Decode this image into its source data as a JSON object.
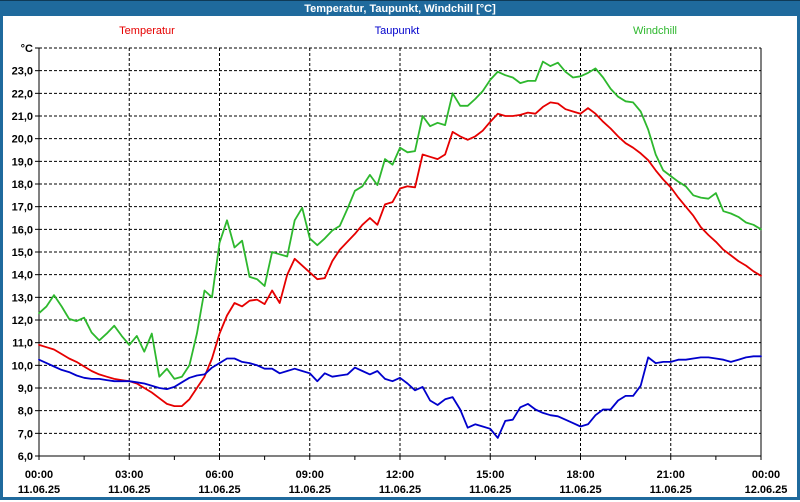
{
  "window": {
    "title": "Temperatur, Taupunkt, Windchill [°C]"
  },
  "colors": {
    "titlebar_bg": "#1f6a9d",
    "frame": "#1f6a9d",
    "plot_background": "#ffffff",
    "grid": "#000000",
    "axis_text": "#000000",
    "title_text": "#ffffff",
    "temperatur": "#e60000",
    "taupunkt": "#0000cc",
    "windchill": "#2eb82e"
  },
  "legend": [
    {
      "label": "Temperatur",
      "color": "#e60000"
    },
    {
      "label": "Taupunkt",
      "color": "#0000cc"
    },
    {
      "label": "Windchill",
      "color": "#2eb82e"
    }
  ],
  "chart_data": {
    "type": "line",
    "title": "Temperatur, Taupunkt, Windchill [°C]",
    "grid": "dashed",
    "legend_position": "top",
    "y_axis": {
      "unit_label": "°C",
      "min": 6,
      "max": 24,
      "tick_step": 1,
      "tick_labels": [
        "23,0",
        "22,0",
        "21,0",
        "20,0",
        "19,0",
        "18,0",
        "17,0",
        "16,0",
        "15,0",
        "14,0",
        "13,0",
        "12,0",
        "11,0",
        "10,0",
        "9,0",
        "8,0",
        "7,0",
        "6,0"
      ]
    },
    "x_axis": {
      "start_hour": 0,
      "end_hour": 24,
      "major_tick_hours": 3,
      "minor_tick_hours": 1.5,
      "labels": [
        {
          "time": "00:00",
          "date": "11.06.25"
        },
        {
          "time": "03:00",
          "date": "11.06.25"
        },
        {
          "time": "06:00",
          "date": "11.06.25"
        },
        {
          "time": "09:00",
          "date": "11.06.25"
        },
        {
          "time": "12:00",
          "date": "11.06.25"
        },
        {
          "time": "15:00",
          "date": "11.06.25"
        },
        {
          "time": "18:00",
          "date": "11.06.25"
        },
        {
          "time": "21:00",
          "date": "11.06.25"
        },
        {
          "time": "00:00",
          "date": "12.06.25"
        }
      ]
    },
    "sample_step_hours": 0.25,
    "series": [
      {
        "name": "Temperatur",
        "color": "#e60000",
        "values": [
          10.9,
          10.8,
          10.7,
          10.5,
          10.3,
          10.15,
          9.95,
          9.75,
          9.6,
          9.5,
          9.4,
          9.35,
          9.3,
          9.2,
          9.0,
          8.8,
          8.55,
          8.3,
          8.2,
          8.2,
          8.5,
          9.0,
          9.5,
          10.3,
          11.4,
          12.2,
          12.75,
          12.6,
          12.85,
          12.9,
          12.7,
          13.3,
          12.75,
          14.0,
          14.7,
          14.4,
          14.1,
          13.8,
          13.85,
          14.6,
          15.1,
          15.45,
          15.8,
          16.2,
          16.5,
          16.2,
          17.1,
          17.2,
          17.8,
          17.9,
          17.85,
          19.3,
          19.2,
          19.1,
          19.3,
          20.3,
          20.1,
          19.95,
          20.1,
          20.35,
          20.75,
          21.1,
          21.0,
          21.0,
          21.05,
          21.15,
          21.1,
          21.4,
          21.6,
          21.55,
          21.3,
          21.2,
          21.1,
          21.35,
          21.1,
          20.75,
          20.45,
          20.1,
          19.8,
          19.6,
          19.35,
          19.05,
          18.6,
          18.2,
          17.85,
          17.4,
          17.0,
          16.6,
          16.1,
          15.75,
          15.45,
          15.1,
          14.85,
          14.6,
          14.4,
          14.15,
          13.95
        ]
      },
      {
        "name": "Taupunkt",
        "color": "#0000cc",
        "values": [
          10.25,
          10.1,
          9.95,
          9.8,
          9.7,
          9.55,
          9.45,
          9.4,
          9.4,
          9.35,
          9.3,
          9.3,
          9.3,
          9.25,
          9.2,
          9.1,
          9.0,
          8.95,
          9.05,
          9.25,
          9.45,
          9.55,
          9.6,
          9.9,
          10.1,
          10.3,
          10.3,
          10.15,
          10.1,
          10.0,
          9.85,
          9.85,
          9.65,
          9.75,
          9.85,
          9.75,
          9.65,
          9.3,
          9.65,
          9.5,
          9.55,
          9.6,
          9.9,
          9.75,
          9.6,
          9.75,
          9.4,
          9.3,
          9.45,
          9.2,
          8.9,
          9.05,
          8.45,
          8.25,
          8.5,
          8.6,
          8.05,
          7.25,
          7.4,
          7.3,
          7.2,
          6.8,
          7.55,
          7.6,
          8.15,
          8.3,
          8.05,
          7.9,
          7.8,
          7.75,
          7.6,
          7.45,
          7.3,
          7.4,
          7.8,
          8.05,
          8.05,
          8.45,
          8.65,
          8.65,
          9.1,
          10.35,
          10.1,
          10.15,
          10.15,
          10.25,
          10.25,
          10.3,
          10.35,
          10.35,
          10.3,
          10.25,
          10.15,
          10.25,
          10.35,
          10.4,
          10.4
        ]
      },
      {
        "name": "Windchill",
        "color": "#2eb82e",
        "values": [
          12.3,
          12.6,
          13.1,
          12.6,
          12.05,
          11.95,
          12.1,
          11.45,
          11.1,
          11.4,
          11.75,
          11.3,
          10.9,
          11.3,
          10.6,
          11.4,
          9.5,
          9.85,
          9.4,
          9.5,
          10.0,
          11.4,
          13.3,
          13.0,
          15.4,
          16.4,
          15.2,
          15.5,
          13.9,
          13.8,
          13.5,
          15.0,
          14.9,
          14.8,
          16.4,
          16.95,
          15.6,
          15.3,
          15.6,
          15.95,
          16.15,
          16.9,
          17.7,
          17.9,
          18.4,
          17.95,
          19.1,
          18.85,
          19.6,
          19.4,
          19.45,
          21.0,
          20.55,
          20.7,
          20.6,
          22.0,
          21.45,
          21.45,
          21.75,
          22.1,
          22.6,
          22.95,
          22.8,
          22.7,
          22.45,
          22.55,
          22.55,
          23.4,
          23.2,
          23.35,
          22.95,
          22.7,
          22.75,
          22.9,
          23.1,
          22.7,
          22.2,
          21.85,
          21.65,
          21.6,
          21.2,
          20.4,
          19.3,
          18.6,
          18.35,
          18.1,
          17.9,
          17.5,
          17.4,
          17.35,
          17.6,
          16.8,
          16.7,
          16.55,
          16.3,
          16.2,
          16.0
        ]
      }
    ]
  }
}
